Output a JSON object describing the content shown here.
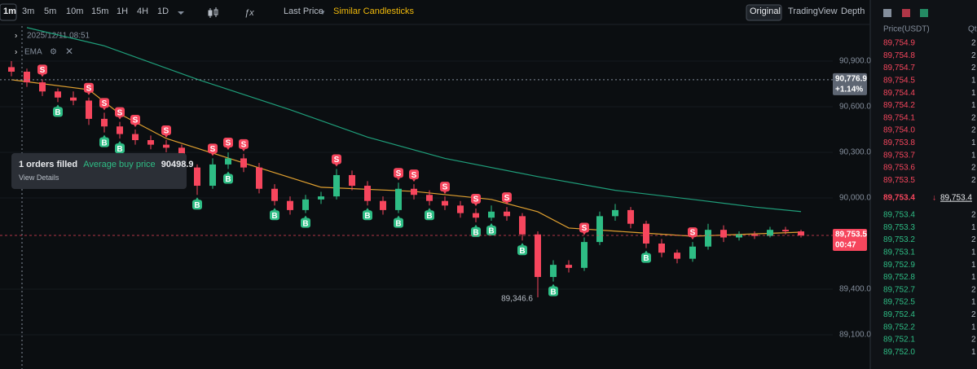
{
  "toolbar": {
    "intervals": [
      "1m",
      "3m",
      "5m",
      "10m",
      "15m",
      "1H",
      "4H",
      "1D"
    ],
    "price_type": "Last Price",
    "similar": "Similar Candlesticks",
    "views": [
      "Original",
      "TradingView",
      "Depth"
    ]
  },
  "chart_data": {
    "type": "candlestick",
    "up_color": "#2ebd85",
    "down_color": "#f6465d",
    "ylim": [
      88875,
      91130
    ],
    "yticks": [
      {
        "value": 90900,
        "label": "90,900.0"
      },
      {
        "value": 90600,
        "label": "90,600.0"
      },
      {
        "value": 90300,
        "label": "90,300.0"
      },
      {
        "value": 90000,
        "label": "90,000.0"
      },
      {
        "value": 89400,
        "label": "89,400.0"
      },
      {
        "value": 89100,
        "label": "89,100.0"
      }
    ],
    "candles": [
      [
        90860,
        90900,
        90800,
        90830
      ],
      [
        90830,
        90850,
        90730,
        90760
      ],
      [
        90760,
        90780,
        90670,
        90700
      ],
      [
        90700,
        90720,
        90630,
        90660
      ],
      [
        90660,
        90700,
        90610,
        90640
      ],
      [
        90640,
        90660,
        90480,
        90520
      ],
      [
        90520,
        90560,
        90430,
        90470
      ],
      [
        90470,
        90500,
        90390,
        90420
      ],
      [
        90420,
        90450,
        90350,
        90380
      ],
      [
        90380,
        90410,
        90320,
        90350
      ],
      [
        90350,
        90380,
        90300,
        90330
      ],
      [
        90330,
        90350,
        90160,
        90200
      ],
      [
        90200,
        90220,
        90020,
        90080
      ],
      [
        90080,
        90260,
        90060,
        90220
      ],
      [
        90220,
        90300,
        90190,
        90260
      ],
      [
        90260,
        90290,
        90170,
        90200
      ],
      [
        90200,
        90230,
        90030,
        90060
      ],
      [
        90060,
        90090,
        89950,
        89980
      ],
      [
        89980,
        90010,
        89890,
        89920
      ],
      [
        89920,
        90020,
        89900,
        89990
      ],
      [
        89990,
        90040,
        89960,
        90010
      ],
      [
        90010,
        90190,
        89990,
        90150
      ],
      [
        90150,
        90180,
        90050,
        90080
      ],
      [
        90080,
        90110,
        89950,
        89980
      ],
      [
        89980,
        90010,
        89890,
        89920
      ],
      [
        89920,
        90100,
        89900,
        90060
      ],
      [
        90060,
        90090,
        89990,
        90020
      ],
      [
        90020,
        90050,
        89950,
        89980
      ],
      [
        89980,
        90010,
        89920,
        89950
      ],
      [
        89950,
        89980,
        89870,
        89900
      ],
      [
        89900,
        89930,
        89840,
        89870
      ],
      [
        89870,
        89950,
        89850,
        89910
      ],
      [
        89910,
        89940,
        89850,
        89880
      ],
      [
        89880,
        89900,
        89720,
        89760
      ],
      [
        89760,
        89780,
        89346.6,
        89480
      ],
      [
        89480,
        89590,
        89450,
        89560
      ],
      [
        89560,
        89590,
        89510,
        89540
      ],
      [
        89540,
        89740,
        89520,
        89710
      ],
      [
        89710,
        89910,
        89690,
        89880
      ],
      [
        89880,
        89960,
        89850,
        89920
      ],
      [
        89920,
        89940,
        89800,
        89830
      ],
      [
        89830,
        89850,
        89670,
        89700
      ],
      [
        89700,
        89730,
        89610,
        89640
      ],
      [
        89640,
        89660,
        89570,
        89600
      ],
      [
        89600,
        89710,
        89580,
        89680
      ],
      [
        89680,
        89830,
        89660,
        89790
      ],
      [
        89790,
        89820,
        89710,
        89740
      ],
      [
        89740,
        89780,
        89720,
        89760
      ],
      [
        89760,
        89780,
        89730,
        89750
      ],
      [
        89750,
        89810,
        89740,
        89790
      ],
      [
        89790,
        89810,
        89760,
        89780
      ],
      [
        89780,
        89790,
        89740,
        89753.5
      ]
    ],
    "ema": [
      {
        "color": "#e0a030",
        "x": [
          0,
          5,
          7,
          10,
          15,
          20,
          26,
          31,
          34,
          36,
          40,
          44,
          51
        ],
        "values": [
          90777,
          90712,
          90552,
          90391,
          90230,
          90070,
          90043,
          89990,
          89909,
          89802,
          89775,
          89748,
          89775
        ]
      },
      {
        "color": "#1f9e7a",
        "x": [
          1,
          6,
          12,
          18,
          23,
          28,
          34,
          39,
          44,
          48,
          51
        ],
        "values": [
          91120,
          91000,
          90780,
          90580,
          90400,
          90260,
          90140,
          90050,
          89990,
          89940,
          89910
        ]
      }
    ],
    "ema_label": "EMA",
    "trade_markers": [
      "S",
      "S",
      "S",
      "S",
      "S",
      "S",
      "S",
      "S",
      "S",
      "S",
      "S",
      "S",
      "S",
      "S",
      "S",
      "S",
      "S",
      "B",
      "B",
      "B",
      "B",
      "B",
      "B",
      "B",
      "B",
      "B",
      "B",
      "B",
      "B",
      "B",
      "B",
      "B"
    ],
    "low_label": "89,346.6",
    "crosshair": {
      "time": "2025/12/11 08:51",
      "price": {
        "value": 90776.9,
        "label": "90,776.9"
      },
      "change": "+1.14%"
    },
    "last_price": {
      "value": 89753.5,
      "label": "89,753.5"
    },
    "countdown": "00:47",
    "order_tooltip": {
      "title": "1 orders filled",
      "label": "Average buy price",
      "value": 90498.9,
      "link": "View Details"
    }
  },
  "order_book": {
    "headers": [
      "Price(USDT)",
      "Qt"
    ],
    "asks": [
      [
        "89,754.9",
        "2"
      ],
      [
        "89,754.8",
        "2"
      ],
      [
        "89,754.7",
        "2"
      ],
      [
        "89,754.5",
        "1"
      ],
      [
        "89,754.4",
        "1"
      ],
      [
        "89,754.2",
        "1"
      ],
      [
        "89,754.1",
        "2"
      ],
      [
        "89,754.0",
        "2"
      ],
      [
        "89,753.8",
        "1"
      ],
      [
        "89,753.7",
        "1"
      ],
      [
        "89,753.6",
        "2"
      ],
      [
        "89,753.5",
        "2"
      ]
    ],
    "mid_price": "89,753.4",
    "mid_arrow": "↓",
    "mark_price": "89,753.4",
    "bids": [
      [
        "89,753.4",
        "2"
      ],
      [
        "89,753.3",
        "1"
      ],
      [
        "89,753.2",
        "2"
      ],
      [
        "89,753.1",
        "1"
      ],
      [
        "89,752.9",
        "1"
      ],
      [
        "89,752.8",
        "1"
      ],
      [
        "89,752.7",
        "2"
      ],
      [
        "89,752.5",
        "1"
      ],
      [
        "89,752.4",
        "2"
      ],
      [
        "89,752.2",
        "1"
      ],
      [
        "89,752.1",
        "2"
      ],
      [
        "89,752.0",
        "1"
      ]
    ]
  }
}
